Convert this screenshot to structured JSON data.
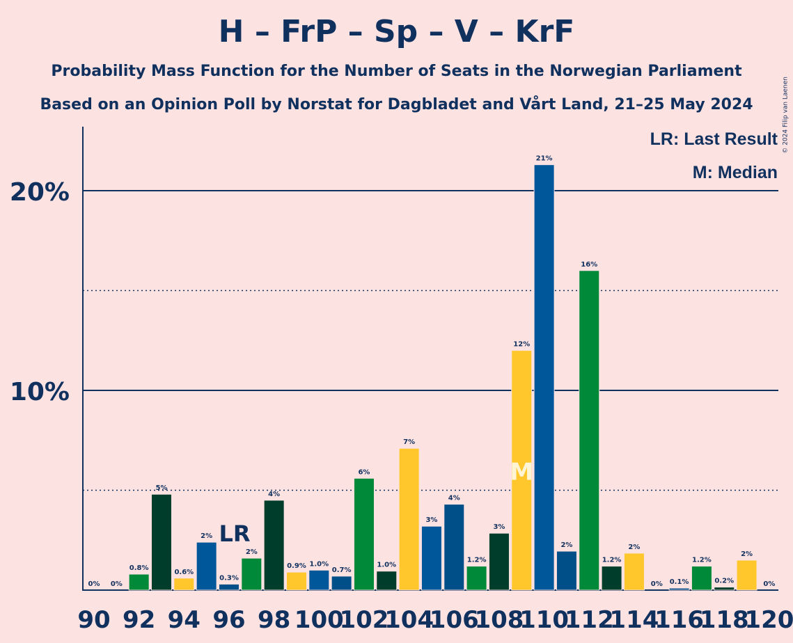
{
  "header": {
    "title": "H – FrP – Sp – V – KrF",
    "subtitle1": "Probability Mass Function for the Number of Seats in the Norwegian Parliament",
    "subtitle2": "Based on an Opinion Poll by Norstat for Dagbladet and Vårt Land, 21–25 May 2024",
    "copyright": "© 2024 Filip van Laenen"
  },
  "legend": {
    "last_result": "LR: Last Result",
    "median": "M: Median"
  },
  "colors": {
    "background": "#fde2e2",
    "text": "#10305e",
    "H": "#005799",
    "FrP": "#004f89",
    "Sp": "#008938",
    "V": "#003d2b",
    "KrF": "#ffc72b"
  },
  "chart_data": {
    "type": "bar",
    "x": [
      90,
      91,
      92,
      93,
      94,
      95,
      96,
      97,
      98,
      99,
      100,
      101,
      102,
      103,
      104,
      105,
      106,
      107,
      108,
      109,
      110,
      111,
      112,
      113,
      114,
      115,
      116,
      117,
      118,
      119,
      120
    ],
    "values": [
      0,
      0,
      0.8,
      4.8,
      0.6,
      2.4,
      0.3,
      1.6,
      4.5,
      0.9,
      1.0,
      0.7,
      5.6,
      0.95,
      7.1,
      3.2,
      4.3,
      1.2,
      2.85,
      12.0,
      21.3,
      1.95,
      16.0,
      1.2,
      1.85,
      0,
      0.1,
      1.2,
      0.15,
      1.5,
      0
    ],
    "data_labels": [
      "0%",
      "0%",
      "0.8%",
      "5%",
      "0.6%",
      "2%",
      "0.3%",
      "2%",
      "4%",
      "0.9%",
      "1.0%",
      "0.7%",
      "6%",
      "1.0%",
      "7%",
      "3%",
      "4%",
      "1.2%",
      "3%",
      "12%",
      "21%",
      "2%",
      "16%",
      "1.2%",
      "2%",
      "0%",
      "0.1%",
      "1.2%",
      "0.2%",
      "2%",
      "0%"
    ],
    "bar_parties": [
      "H",
      "KrF",
      "Sp",
      "V",
      "KrF",
      "H",
      "FrP",
      "Sp",
      "V",
      "KrF",
      "H",
      "FrP",
      "Sp",
      "V",
      "KrF",
      "H",
      "FrP",
      "Sp",
      "V",
      "KrF",
      "H",
      "FrP",
      "Sp",
      "V",
      "KrF",
      "H",
      "FrP",
      "Sp",
      "V",
      "KrF",
      "H"
    ],
    "x_tick_labels": [
      "90",
      "92",
      "94",
      "96",
      "98",
      "100",
      "102",
      "104",
      "106",
      "108",
      "110",
      "112",
      "114",
      "116",
      "118",
      "120"
    ],
    "y_tick_labels": [
      "10%",
      "20%"
    ],
    "ylim": [
      0,
      23.3
    ],
    "solid_gridlines": [
      10,
      20
    ],
    "dotted_gridlines": [
      5,
      15
    ],
    "last_result": {
      "seat": 96,
      "marker": "LR"
    },
    "median": {
      "seat": 109,
      "marker": "M"
    }
  }
}
